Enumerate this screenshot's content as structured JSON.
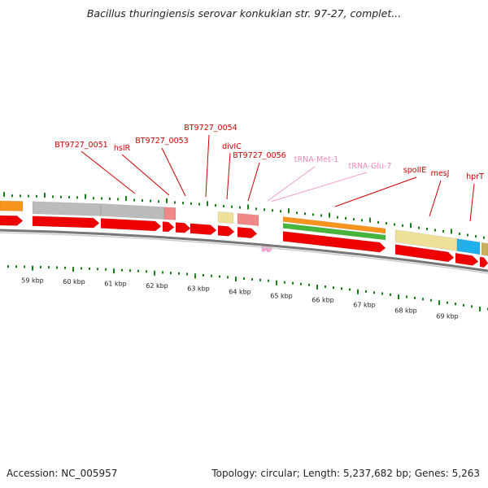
{
  "title": "Bacillus thuringiensis serovar konkukian str. 97-27, complet...",
  "accession_label": "Accession: NC_005957",
  "summary_label": "Topology: circular; Length: 5,237,682 bp; Genes: 5,263",
  "colors": {
    "cds": "#ee0000",
    "trna": "#f8a8d8",
    "gray": "#bbbbbb",
    "pink": "#f08888",
    "khaki": "#eee099",
    "orange": "#f7941d",
    "green": "#46b53c",
    "cyan": "#1fb0ec",
    "olive": "#c9b060",
    "tick": "#1a7f1a",
    "backbone": "#777777"
  },
  "gene_labels": [
    {
      "text": "BT9727_0051",
      "type": "gene"
    },
    {
      "text": "hslR",
      "type": "gene"
    },
    {
      "text": "BT9727_0053",
      "type": "gene"
    },
    {
      "text": "BT9727_0054",
      "type": "gene"
    },
    {
      "text": "divIC",
      "type": "gene"
    },
    {
      "text": "BT9727_0056",
      "type": "gene"
    },
    {
      "text": "tRNA-Met-1",
      "type": "rna"
    },
    {
      "text": "tRNA-Glu-7",
      "type": "rna"
    },
    {
      "text": "spoIIE",
      "type": "gene"
    },
    {
      "text": "mesJ",
      "type": "gene"
    },
    {
      "text": "hprT",
      "type": "gene"
    }
  ],
  "kbp_ticks": [
    "59 kbp",
    "60 kbp",
    "61 kbp",
    "62 kbp",
    "63 kbp",
    "64 kbp",
    "65 kbp",
    "66 kbp",
    "67 kbp",
    "68 kbp",
    "69 kbp"
  ]
}
